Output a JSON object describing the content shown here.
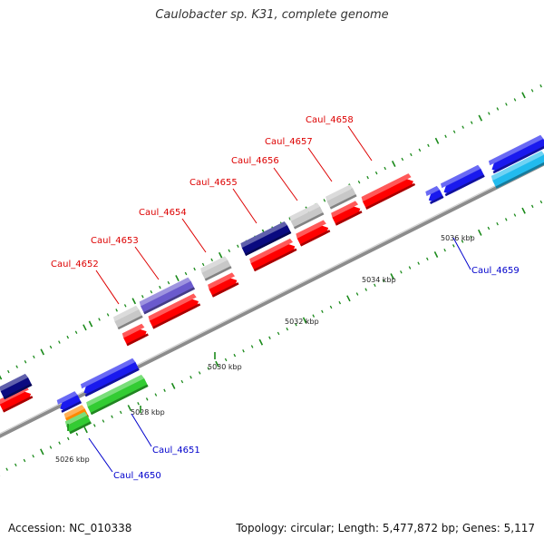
{
  "title": "Caulobacter sp. K31, complete genome",
  "footer": {
    "accession": "Accession: NC_010338",
    "summary": "Topology: circular; Length: 5,477,872 bp; Genes: 5,117"
  },
  "colors": {
    "backbone": "#888888",
    "tick": "#1a8a1a",
    "label_forward": "#dd0000",
    "label_reverse": "#0000cc",
    "forward_gene": "#ff0000",
    "reverse_gene": "#1a1aee",
    "gray_gene": "#c8c8c8",
    "navy_gene": "#0a0a80",
    "purple_gene": "#6a5acd",
    "green_gene": "#33cc33",
    "cyan_gene": "#22bbee",
    "orange_gene": "#ff8800"
  },
  "scale_labels": [
    "5026 kbp",
    "5028 kbp",
    "5030 kbp",
    "5032 kbp",
    "5034 kbp",
    "5036 kbp"
  ],
  "gene_labels": [
    {
      "text": "Caul_4650",
      "strand": "reverse"
    },
    {
      "text": "Caul_4651",
      "strand": "reverse"
    },
    {
      "text": "Caul_4652",
      "strand": "forward"
    },
    {
      "text": "Caul_4653",
      "strand": "forward"
    },
    {
      "text": "Caul_4654",
      "strand": "forward"
    },
    {
      "text": "Caul_4655",
      "strand": "forward"
    },
    {
      "text": "Caul_4656",
      "strand": "forward"
    },
    {
      "text": "Caul_4657",
      "strand": "forward"
    },
    {
      "text": "Caul_4658",
      "strand": "forward"
    },
    {
      "text": "Caul_4659",
      "strand": "reverse"
    }
  ]
}
